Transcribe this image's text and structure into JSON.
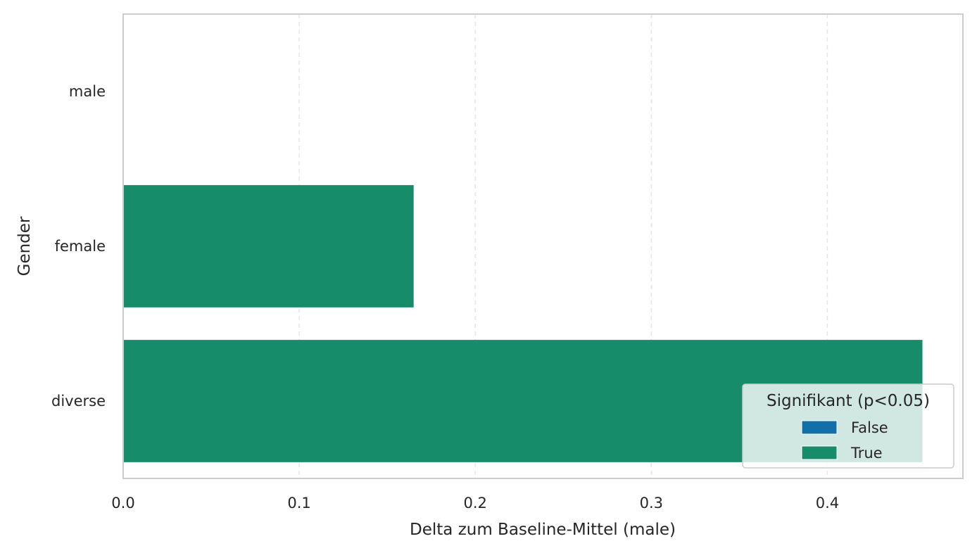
{
  "chart_data": {
    "type": "bar",
    "orientation": "horizontal",
    "categories": [
      "male",
      "female",
      "diverse"
    ],
    "values": [
      0.0,
      0.165,
      0.454
    ],
    "significant": [
      null,
      "True",
      "True"
    ],
    "xlabel": "Delta zum Baseline-Mittel (male)",
    "ylabel": "Gender",
    "xlim": [
      0.0,
      0.477
    ],
    "xticks": [
      0.0,
      0.1,
      0.2,
      0.3,
      0.4
    ],
    "xtick_labels": [
      "0.0",
      "0.1",
      "0.2",
      "0.3",
      "0.4"
    ],
    "grid": "vertical dashed",
    "legend": {
      "title": "Signifikant (p<0.05)",
      "placement": "bottom-right",
      "entries": [
        {
          "label": "False",
          "color": "#1170aa"
        },
        {
          "label": "True",
          "color": "#178c6a"
        }
      ]
    }
  }
}
